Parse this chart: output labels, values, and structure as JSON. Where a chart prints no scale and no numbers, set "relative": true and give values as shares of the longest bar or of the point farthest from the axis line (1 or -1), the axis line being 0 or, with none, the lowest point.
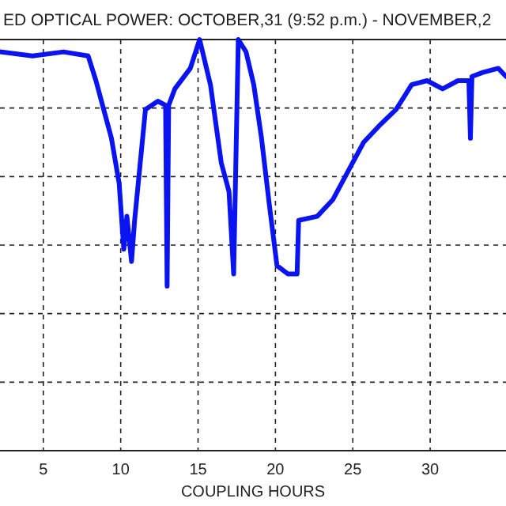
{
  "chart_data": {
    "type": "line",
    "title": "ED OPTICAL POWER: OCTOBER,31 (9:52 p.m.) - NOVEMBER,2",
    "xlabel": "COUPLING HOURS",
    "relative": true,
    "grid": true,
    "xlim": [
      2.2,
      34.9
    ],
    "xticks": [
      5,
      10,
      15,
      20,
      25,
      30
    ],
    "series": [
      {
        "color": "#0a14f0",
        "x": [
          2.2,
          4.3,
          6.3,
          7.9,
          8.4,
          8.9,
          9.4,
          9.9,
          10.2,
          10.4,
          10.7,
          10.9,
          11.6,
          12.4,
          12.9,
          13.0,
          13.1,
          13.5,
          14.5,
          15.1,
          15.8,
          16.5,
          17.0,
          17.3,
          17.6,
          18.1,
          18.6,
          19.1,
          19.6,
          20.1,
          20.8,
          21.4,
          21.5,
          22.7,
          23.7,
          24.7,
          25.7,
          26.7,
          27.8,
          28.8,
          29.8,
          30.8,
          31.8,
          32.5,
          32.6,
          32.7,
          33.4,
          34.4,
          34.9
        ],
        "values": [
          0.97,
          0.96,
          0.97,
          0.96,
          0.9,
          0.83,
          0.76,
          0.65,
          0.49,
          0.57,
          0.46,
          0.56,
          0.83,
          0.85,
          0.84,
          0.4,
          0.84,
          0.88,
          0.93,
          1.0,
          0.89,
          0.7,
          0.63,
          0.43,
          1.0,
          0.97,
          0.89,
          0.76,
          0.6,
          0.45,
          0.43,
          0.43,
          0.56,
          0.57,
          0.61,
          0.68,
          0.75,
          0.79,
          0.83,
          0.89,
          0.9,
          0.88,
          0.9,
          0.9,
          0.76,
          0.91,
          0.92,
          0.93,
          0.91
        ]
      }
    ]
  }
}
